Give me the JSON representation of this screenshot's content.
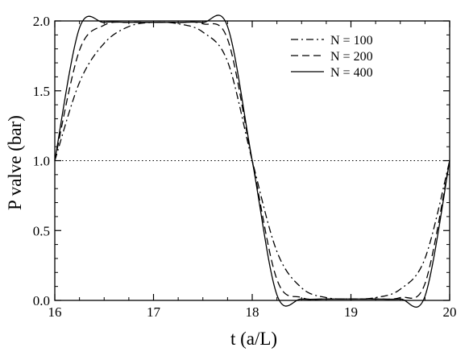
{
  "chart_data": {
    "type": "line",
    "title": "",
    "xlabel": "t (a/L)",
    "ylabel": "P valve (bar)",
    "xlim": [
      16,
      20
    ],
    "ylim": [
      0.0,
      2.0
    ],
    "xticks": [
      "16",
      "17",
      "18",
      "19",
      "20"
    ],
    "yticks": [
      "0.0",
      "0.5",
      "1.0",
      "1.5",
      "2.0"
    ],
    "reference_line": {
      "y": 1.0,
      "style": "dotted"
    },
    "legend_position": "top-right",
    "grid": false,
    "series": [
      {
        "name": "N = 100",
        "style": "dash-dot",
        "x": [
          16.0,
          16.25,
          16.5,
          16.75,
          17.0,
          17.25,
          17.5,
          17.75,
          18.0,
          18.25,
          18.5,
          18.75,
          19.0,
          19.25,
          19.5,
          19.75,
          20.0
        ],
        "y": [
          1.0,
          1.56,
          1.84,
          1.96,
          1.99,
          1.98,
          1.92,
          1.71,
          1.0,
          0.35,
          0.09,
          0.02,
          0.01,
          0.02,
          0.08,
          0.3,
          1.0
        ]
      },
      {
        "name": "N = 200",
        "style": "dashed",
        "x": [
          16.0,
          16.25,
          16.5,
          16.75,
          17.0,
          17.25,
          17.5,
          17.75,
          18.0,
          18.25,
          18.5,
          18.75,
          19.0,
          19.25,
          19.5,
          19.75,
          20.0
        ],
        "y": [
          1.0,
          1.79,
          1.97,
          1.99,
          1.99,
          1.99,
          1.98,
          1.87,
          1.0,
          0.15,
          0.02,
          0.01,
          0.01,
          0.01,
          0.02,
          0.12,
          1.0
        ]
      },
      {
        "name": "N = 400",
        "style": "solid",
        "x": [
          16.0,
          16.25,
          16.5,
          16.75,
          17.0,
          17.25,
          17.5,
          17.75,
          18.0,
          18.25,
          18.5,
          18.75,
          19.0,
          19.25,
          19.5,
          19.75,
          20.0
        ],
        "y": [
          1.0,
          1.95,
          1.99,
          1.99,
          1.99,
          1.99,
          1.99,
          1.96,
          1.0,
          0.04,
          0.01,
          0.01,
          0.01,
          0.01,
          0.01,
          0.03,
          1.0
        ]
      }
    ]
  }
}
